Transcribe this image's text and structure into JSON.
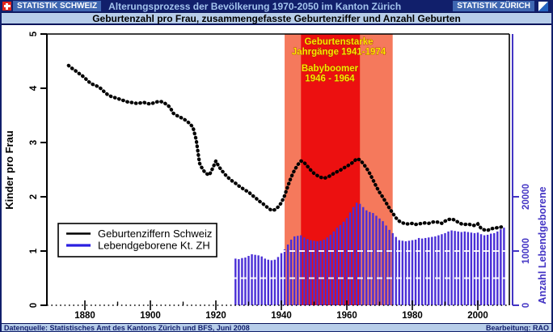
{
  "header": {
    "brand_left": "STATISTIK SCHWEIZ",
    "title": "Alterungsprozess der Bevölkerung 1970-2050 im Kanton Zürich",
    "brand_right": "STATISTIK ZÜRICH"
  },
  "subtitle": "Geburtenzahl pro Frau, zusammengefasste Geburtenziffer und Anzahl Geburten",
  "footer": {
    "source": "Datenquelle: Statistisches Amt des Kantons Zürich und BFS, Juni  2008",
    "credit": "Bearbeitung: RAO"
  },
  "legend": {
    "items": [
      {
        "label": "Geburtenziffern Schweiz",
        "color": "#000000"
      },
      {
        "label": "Lebendgeborene Kt. ZH",
        "color": "#2a1fe0"
      }
    ]
  },
  "chart_data": {
    "type": "combo",
    "title": "Geburtenzahl pro Frau, zusammengefasste Geburtenziffer und Anzahl Geburten",
    "x_axis": {
      "major_ticks": [
        1880,
        1900,
        1920,
        1940,
        1960,
        1980,
        2000
      ],
      "minor_ticks": [
        1890,
        1910,
        1930,
        1950,
        1970,
        1990
      ],
      "range": [
        1868,
        2010
      ]
    },
    "left_axis": {
      "label": "Kinder pro Frau",
      "ticks": [
        0,
        1,
        2,
        3,
        4,
        5
      ],
      "range": [
        0,
        5
      ],
      "color": "#000000"
    },
    "right_axis": {
      "label": "Anzahl Lebendgeborene",
      "ticks": [
        0,
        10000,
        20000
      ],
      "range": [
        0,
        25000
      ],
      "color": "#4334c4"
    },
    "gridlines_left_values": [
      0.5,
      1.0
    ],
    "bands": [
      {
        "name": "Geburtenstarke Jahrgänge 1941-1974",
        "text_lines": [
          "Geburtenstarke",
          "Jahrgänge 1941-1974"
        ],
        "from": 1941,
        "to": 1974,
        "color": "#f5795c",
        "text_color": "#ffe600"
      },
      {
        "name": "Babyboomer 1946 - 1964",
        "text_lines": [
          "Babyboomer",
          "1946 - 1964"
        ],
        "from": 1946,
        "to": 1964,
        "color": "#ec1010",
        "text_color": "#ffe600"
      }
    ],
    "series": [
      {
        "name": "Geburtenziffern Schweiz",
        "type": "dotted-line",
        "axis": "left",
        "color": "#000000",
        "start_year": 1875,
        "values": [
          4.42,
          4.37,
          4.33,
          4.28,
          4.24,
          4.19,
          4.13,
          4.08,
          4.06,
          4.03,
          3.99,
          3.93,
          3.88,
          3.85,
          3.83,
          3.81,
          3.79,
          3.77,
          3.75,
          3.74,
          3.73,
          3.72,
          3.73,
          3.74,
          3.72,
          3.71,
          3.73,
          3.75,
          3.76,
          3.74,
          3.7,
          3.65,
          3.54,
          3.5,
          3.47,
          3.44,
          3.4,
          3.35,
          3.28,
          3.05,
          2.62,
          2.5,
          2.43,
          2.4,
          2.52,
          2.66,
          2.55,
          2.47,
          2.4,
          2.34,
          2.29,
          2.25,
          2.2,
          2.16,
          2.12,
          2.09,
          2.03,
          1.99,
          1.93,
          1.89,
          1.84,
          1.79,
          1.75,
          1.76,
          1.81,
          1.89,
          2.02,
          2.2,
          2.36,
          2.49,
          2.59,
          2.66,
          2.63,
          2.56,
          2.49,
          2.43,
          2.39,
          2.36,
          2.34,
          2.36,
          2.39,
          2.43,
          2.46,
          2.49,
          2.53,
          2.56,
          2.6,
          2.64,
          2.7,
          2.68,
          2.61,
          2.53,
          2.43,
          2.31,
          2.19,
          2.08,
          1.99,
          1.89,
          1.79,
          1.7,
          1.61,
          1.55,
          1.52,
          1.5,
          1.5,
          1.51,
          1.49,
          1.5,
          1.51,
          1.52,
          1.51,
          1.53,
          1.54,
          1.53,
          1.51,
          1.55,
          1.58,
          1.59,
          1.57,
          1.53,
          1.5,
          1.49,
          1.5,
          1.48,
          1.47,
          1.5,
          1.42,
          1.39,
          1.38,
          1.41,
          1.42,
          1.43,
          1.44,
          1.46
        ]
      },
      {
        "name": "Lebendgeborene Kt. ZH",
        "type": "bar",
        "axis": "right",
        "color": "#4a2fd6",
        "start_year": 1926,
        "values": [
          8600,
          8500,
          8700,
          8800,
          9100,
          9400,
          9300,
          9200,
          9000,
          8600,
          8400,
          8300,
          8400,
          8900,
          9600,
          10300,
          11200,
          12100,
          12700,
          12800,
          12900,
          12500,
          12200,
          12000,
          11900,
          11800,
          11900,
          12100,
          12500,
          13000,
          13600,
          14300,
          14800,
          15400,
          16100,
          17100,
          18100,
          18900,
          18700,
          18100,
          17500,
          17200,
          17000,
          16500,
          16000,
          15500,
          14700,
          13900,
          13300,
          12600,
          12000,
          11900,
          11800,
          11900,
          12000,
          12100,
          12400,
          12300,
          12400,
          12500,
          12600,
          12700,
          12900,
          13100,
          13300,
          13600,
          13800,
          13700,
          13600,
          13500,
          13600,
          13500,
          13400,
          13300,
          13400,
          13100,
          12900,
          13000,
          13200,
          13300,
          13600,
          14000,
          14300
        ]
      }
    ]
  }
}
